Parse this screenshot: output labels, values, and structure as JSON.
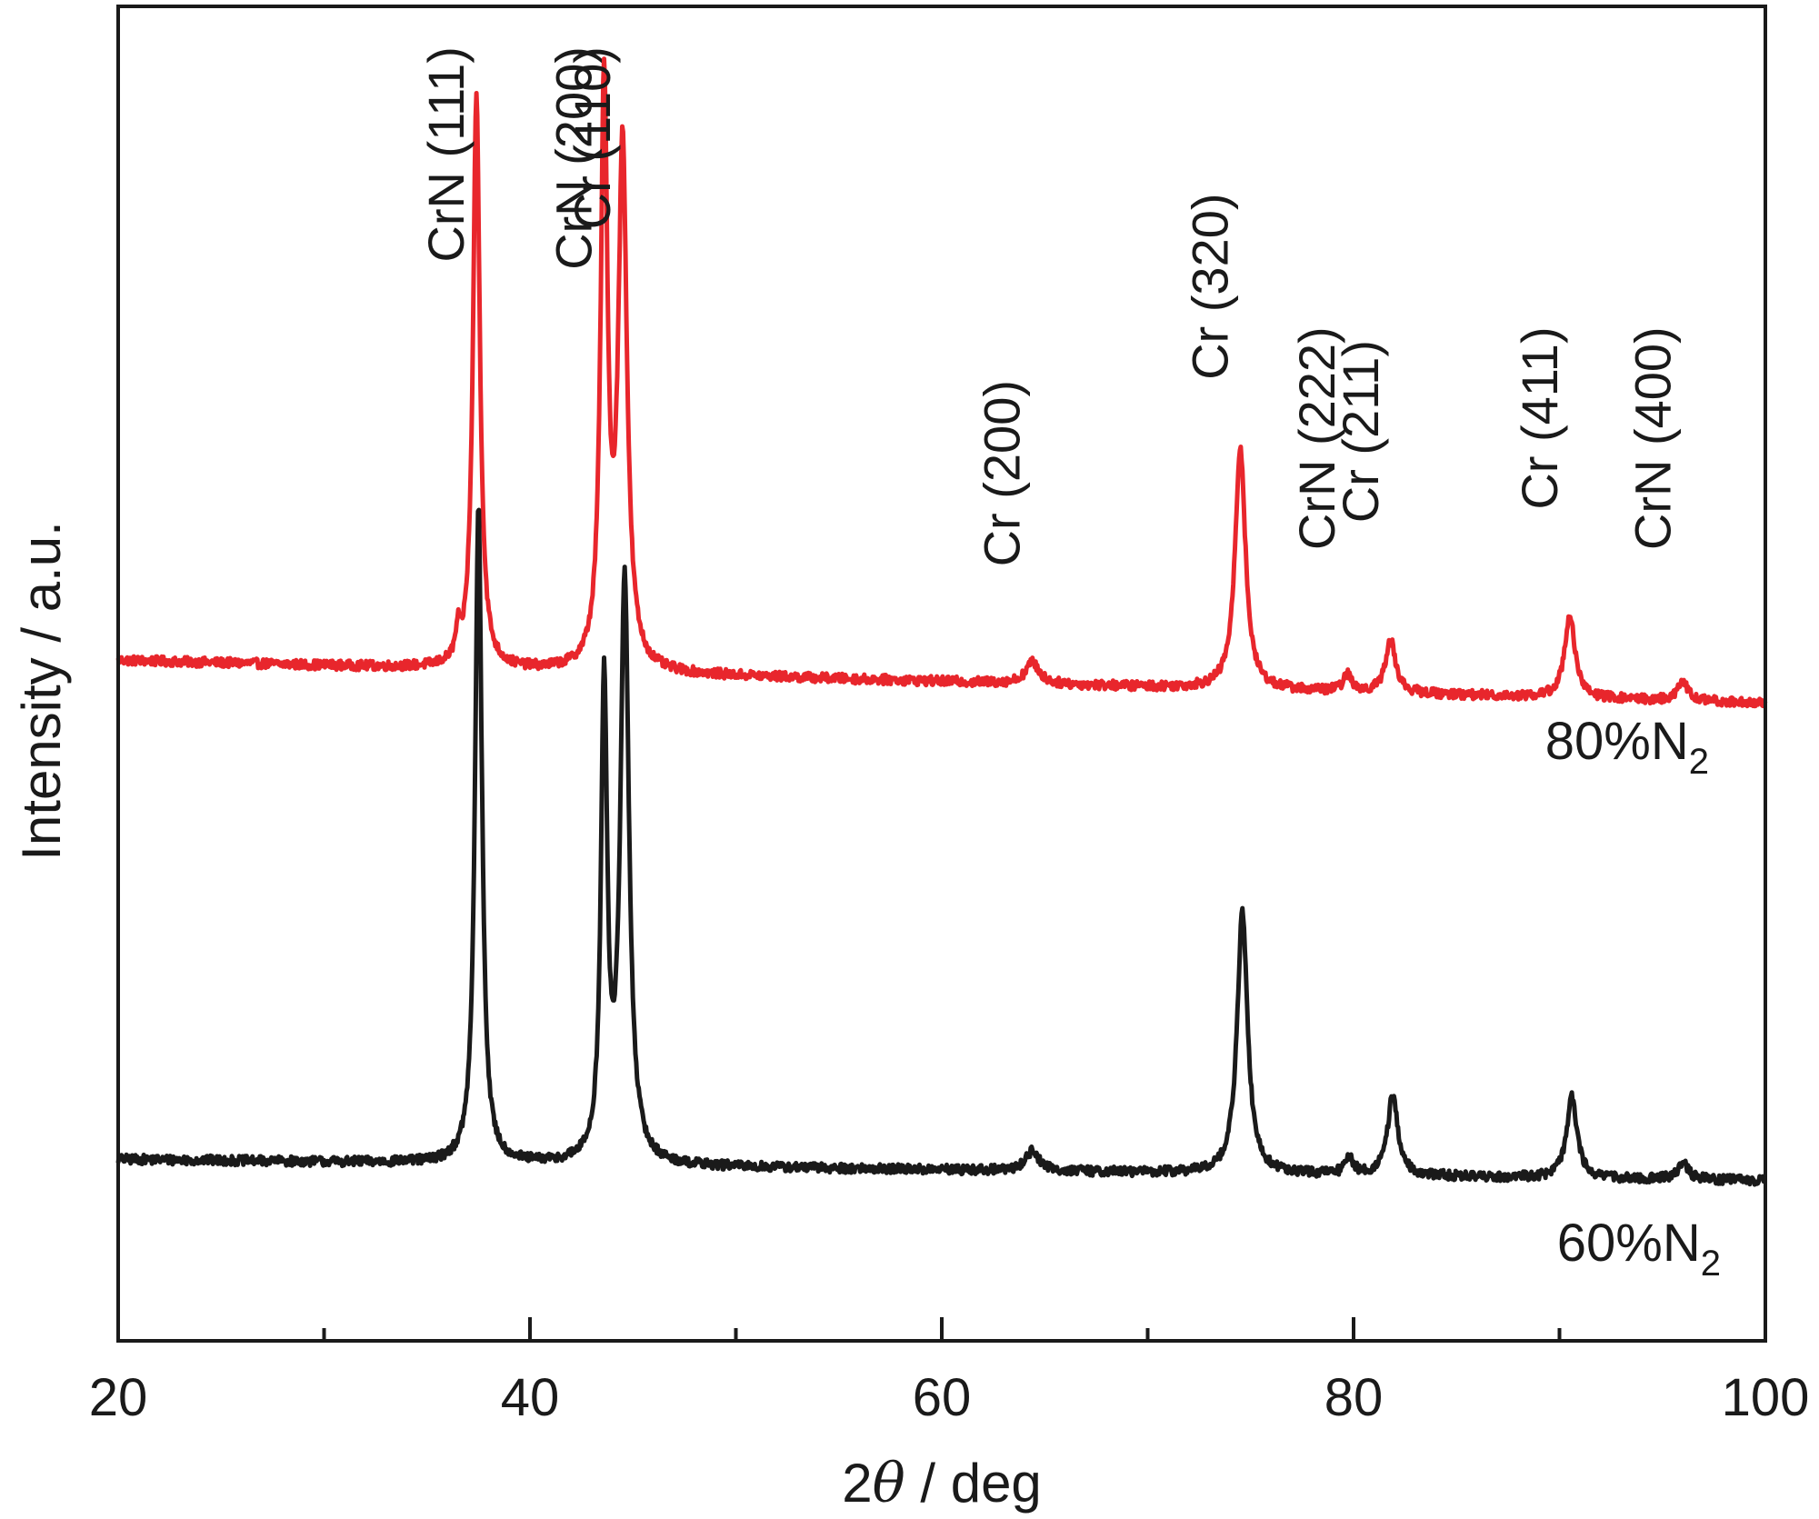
{
  "chart_data": {
    "type": "line",
    "title": "",
    "xlabel": "2θ / deg",
    "xlabel_parts": {
      "prefix": "2",
      "symbol": "θ",
      "suffix": " / deg"
    },
    "ylabel": "Intensity / a.u.",
    "xlim": [
      20,
      100
    ],
    "ylim": [
      0,
      1.0
    ],
    "x_ticks_major": [
      20,
      40,
      60,
      80,
      100
    ],
    "x_ticks_minor": [
      30,
      50,
      70,
      90
    ],
    "x_tick_labels": [
      "20",
      "40",
      "60",
      "80",
      "100"
    ],
    "y_ticks_shown": false,
    "grid": false,
    "legend": "none (series labelled in-plot at right)",
    "series": [
      {
        "name": "80%N2",
        "label_main": "80%N",
        "label_sub": "2",
        "color": "#e8262c",
        "baseline": 0.51,
        "noise": 0.0035,
        "slope": -0.0004,
        "peaks": [
          {
            "x": 36.5,
            "h": 0.02,
            "w": 0.12
          },
          {
            "x": 37.4,
            "h": 0.43,
            "w": 0.2
          },
          {
            "x": 43.6,
            "h": 0.43,
            "w": 0.2
          },
          {
            "x": 44.5,
            "h": 0.39,
            "w": 0.25
          },
          {
            "x": 64.4,
            "h": 0.016,
            "w": 0.4
          },
          {
            "x": 74.5,
            "h": 0.182,
            "w": 0.3
          },
          {
            "x": 79.7,
            "h": 0.012,
            "w": 0.25
          },
          {
            "x": 81.8,
            "h": 0.039,
            "w": 0.3
          },
          {
            "x": 90.5,
            "h": 0.062,
            "w": 0.3
          },
          {
            "x": 96.0,
            "h": 0.014,
            "w": 0.3
          }
        ]
      },
      {
        "name": "60%N2",
        "label_main": "60%N",
        "label_sub": "2",
        "color": "#1a1a1a",
        "baseline": 0.136,
        "noise": 0.0035,
        "slope": -0.0002,
        "peaks": [
          {
            "x": 37.5,
            "h": 0.491,
            "w": 0.2
          },
          {
            "x": 43.6,
            "h": 0.352,
            "w": 0.18
          },
          {
            "x": 44.6,
            "h": 0.436,
            "w": 0.25
          },
          {
            "x": 64.4,
            "h": 0.015,
            "w": 0.4
          },
          {
            "x": 74.6,
            "h": 0.197,
            "w": 0.3
          },
          {
            "x": 79.8,
            "h": 0.012,
            "w": 0.25
          },
          {
            "x": 81.9,
            "h": 0.06,
            "w": 0.3
          },
          {
            "x": 90.6,
            "h": 0.061,
            "w": 0.3
          },
          {
            "x": 96.0,
            "h": 0.013,
            "w": 0.3
          }
        ]
      }
    ],
    "annotations": [
      {
        "text": "CrN (111)",
        "x": 37.4,
        "y_top": 0.97
      },
      {
        "text": "CrN (200)",
        "x": 43.6,
        "y_top": 0.97
      },
      {
        "text": "Cr (110)",
        "x": 44.5,
        "y_top": 0.97
      },
      {
        "text": "Cr (200)",
        "x": 64.4,
        "y_top": 0.72
      },
      {
        "text": "Cr (320)",
        "x": 74.5,
        "y_top": 0.86
      },
      {
        "text": "CrN (222)",
        "x": 79.7,
        "y_top": 0.76
      },
      {
        "text": "Cr (211)",
        "x": 81.8,
        "y_top": 0.75
      },
      {
        "text": "Cr (411)",
        "x": 90.5,
        "y_top": 0.76
      },
      {
        "text": "CrN (400)",
        "x": 96.0,
        "y_top": 0.76
      }
    ]
  }
}
